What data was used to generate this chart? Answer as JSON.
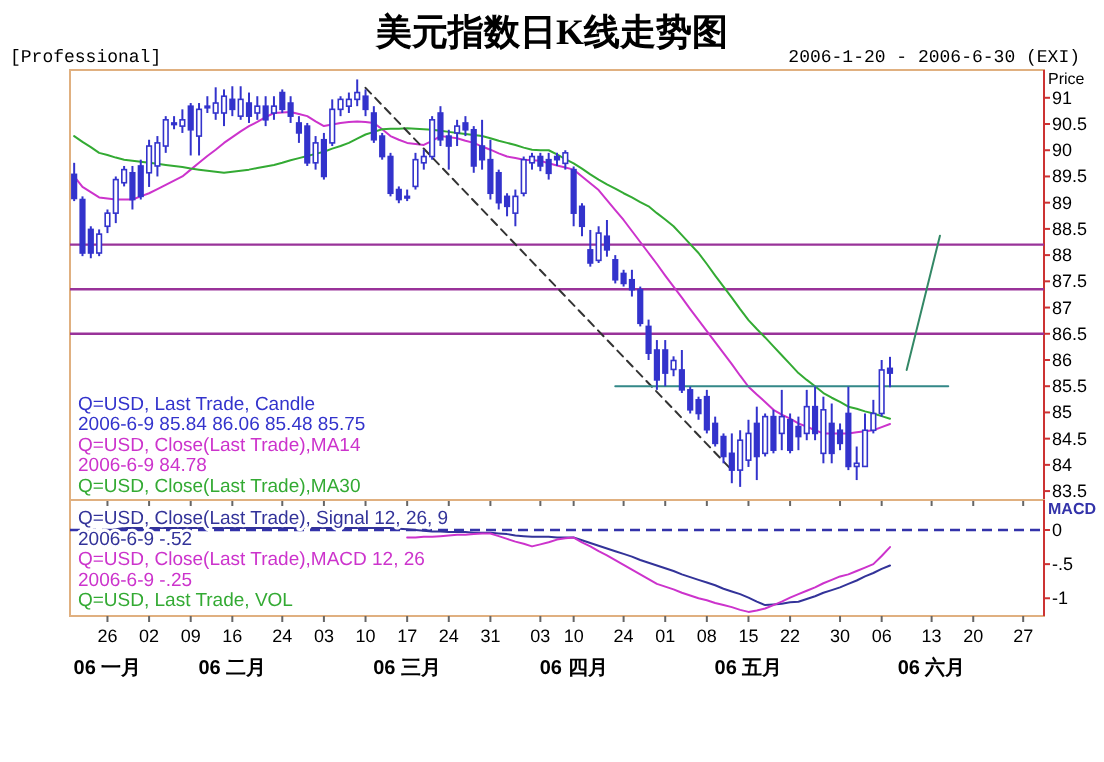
{
  "chart_data": [
    {
      "type": "candlestick",
      "title": "美元指数日K线走势图",
      "subtitle": "2006-1-20 - 2006-6-30 (EXI)",
      "annotations": [
        "[Professional]"
      ],
      "ylabel": "Price",
      "categories": [
        null,
        null,
        null,
        null,
        "26",
        null,
        null,
        null,
        null,
        "02",
        null,
        null,
        null,
        null,
        "09",
        null,
        null,
        null,
        null,
        "16",
        null,
        null,
        null,
        null,
        null,
        "24",
        null,
        null,
        null,
        null,
        "03",
        null,
        null,
        null,
        null,
        "10",
        null,
        null,
        null,
        null,
        "17",
        null,
        null,
        null,
        null,
        "24",
        null,
        null,
        null,
        null,
        "31",
        null,
        null,
        null,
        null,
        null,
        "03",
        null,
        null,
        null,
        "10",
        null,
        null,
        null,
        null,
        null,
        "24",
        null,
        null,
        null,
        null,
        "01",
        null,
        null,
        null,
        null,
        "08",
        null,
        null,
        null,
        null,
        "15",
        null,
        null,
        null,
        null,
        "22",
        null,
        null,
        null,
        null,
        null,
        "30",
        null,
        null,
        null,
        null,
        "06",
        null,
        null,
        null,
        null,
        null,
        "13",
        null,
        null,
        null,
        null,
        "20",
        null,
        null,
        null,
        null,
        null,
        "27",
        null,
        null
      ],
      "ylim": [
        83.33,
        91.53
      ],
      "yticks": [
        83.5,
        84,
        84.5,
        85,
        85.5,
        86,
        86.5,
        87,
        87.5,
        88,
        88.5,
        89,
        89.5,
        90,
        90.5,
        91
      ],
      "tick_labels": "y",
      "legend": "bottom left",
      "ref_lines": [
        {
          "axis": "y",
          "value": 88.2,
          "color": "#993399"
        },
        {
          "axis": "y",
          "value": 87.35,
          "color": "#993399"
        },
        {
          "axis": "y",
          "value": 86.5,
          "color": "#993399"
        }
      ],
      "series": [
        {
          "type": "line",
          "name": "Q=USD, Close(Last Trade),MA14\n2006-6-9 84.78",
          "color": "#cc33cc",
          "values": [
            89.5,
            89.3,
            89.2,
            89.1,
            89.08,
            89.06,
            89.06,
            89.06,
            89.12,
            89.18,
            89.26,
            89.34,
            89.42,
            89.5,
            89.63,
            89.76,
            89.89,
            90.01,
            90.14,
            90.25,
            90.36,
            90.46,
            90.54,
            90.63,
            90.71,
            90.72,
            90.73,
            90.69,
            90.65,
            90.55,
            90.46,
            90.49,
            90.52,
            90.54,
            90.55,
            90.54,
            90.52,
            90.4,
            90.27,
            90.2,
            90.14,
            90.12,
            90.1,
            90.18,
            90.27,
            90.25,
            90.23,
            90.18,
            90.14,
            90.07,
            90.01,
            89.94,
            89.88,
            89.85,
            89.82,
            89.81,
            89.8,
            89.75,
            89.71,
            89.67,
            89.63,
            89.5,
            89.37,
            89.24,
            89.05,
            88.86,
            88.67,
            88.46,
            88.25,
            88.04,
            87.83,
            87.61,
            87.4,
            87.19,
            86.97,
            86.76,
            86.55,
            86.34,
            86.13,
            85.92,
            85.7,
            85.49,
            85.34,
            85.2,
            85.05,
            84.96,
            84.88,
            84.79,
            84.73,
            84.66,
            84.6,
            84.6,
            84.6,
            84.6,
            84.62,
            84.64,
            84.66,
            84.72,
            84.78,
            null,
            null,
            null,
            null,
            null,
            null,
            null,
            null,
            null,
            null,
            null,
            null,
            null,
            null,
            null,
            null,
            null,
            null
          ]
        },
        {
          "type": "line",
          "name": "Q=USD, Close(Last Trade),MA30",
          "color": "#33aa33",
          "values": [
            90.27,
            90.16,
            90.06,
            89.95,
            89.91,
            89.86,
            89.82,
            89.8,
            89.78,
            89.76,
            89.74,
            89.72,
            89.7,
            89.68,
            89.65,
            89.63,
            89.61,
            89.59,
            89.57,
            89.59,
            89.61,
            89.63,
            89.66,
            89.69,
            89.72,
            89.76,
            89.81,
            89.85,
            89.89,
            89.93,
            89.97,
            90.03,
            90.08,
            90.14,
            90.22,
            90.3,
            90.35,
            90.4,
            90.41,
            90.41,
            90.42,
            90.41,
            90.4,
            90.39,
            90.37,
            90.35,
            90.33,
            90.31,
            90.29,
            90.27,
            90.23,
            90.18,
            90.14,
            90.1,
            90.05,
            90.01,
            90.0,
            90.0,
            89.92,
            89.83,
            89.75,
            89.65,
            89.54,
            89.44,
            89.35,
            89.27,
            89.18,
            89.1,
            89.01,
            88.93,
            88.8,
            88.68,
            88.55,
            88.38,
            88.21,
            88.04,
            87.83,
            87.61,
            87.4,
            87.19,
            86.97,
            86.76,
            86.59,
            86.43,
            86.26,
            86.09,
            85.92,
            85.75,
            85.62,
            85.5,
            85.37,
            85.28,
            85.2,
            85.11,
            85.07,
            85.02,
            84.98,
            84.93,
            84.88,
            null,
            null,
            null,
            null,
            null,
            null,
            null,
            null,
            null,
            null,
            null,
            null,
            null,
            null,
            null,
            null,
            null,
            null
          ]
        },
        {
          "type": "line",
          "color": "#333333",
          "line_style": "dashed",
          "values": [
            null,
            null,
            null,
            null,
            null,
            null,
            null,
            null,
            null,
            null,
            null,
            null,
            null,
            null,
            null,
            null,
            null,
            null,
            null,
            null,
            null,
            null,
            null,
            null,
            null,
            null,
            null,
            null,
            null,
            null,
            null,
            null,
            null,
            null,
            null,
            91.19,
            null,
            null,
            null,
            null,
            null,
            null,
            null,
            null,
            null,
            null,
            null,
            null,
            null,
            null,
            null,
            null,
            null,
            null,
            null,
            null,
            null,
            null,
            null,
            null,
            null,
            null,
            null,
            null,
            null,
            null,
            null,
            null,
            null,
            null,
            null,
            null,
            null,
            null,
            null,
            null,
            null,
            null,
            null,
            83.9,
            null,
            null,
            null,
            null,
            null,
            null,
            null,
            null,
            null,
            null,
            null,
            null,
            null,
            null,
            null,
            null,
            null,
            null,
            null,
            null,
            null,
            null,
            null,
            null,
            null,
            null,
            null,
            null,
            null,
            null,
            null,
            null,
            null,
            null,
            null,
            null,
            null
          ]
        },
        {
          "type": "line",
          "color": "#338888",
          "values": [
            null,
            null,
            null,
            null,
            null,
            null,
            null,
            null,
            null,
            null,
            null,
            null,
            null,
            null,
            null,
            null,
            null,
            null,
            null,
            null,
            null,
            null,
            null,
            null,
            null,
            null,
            null,
            null,
            null,
            null,
            null,
            null,
            null,
            null,
            null,
            null,
            null,
            null,
            null,
            null,
            null,
            null,
            null,
            null,
            null,
            null,
            null,
            null,
            null,
            null,
            null,
            null,
            null,
            null,
            null,
            null,
            null,
            null,
            null,
            null,
            null,
            null,
            null,
            null,
            null,
            85.5,
            null,
            null,
            null,
            null,
            null,
            null,
            null,
            null,
            null,
            null,
            null,
            null,
            null,
            null,
            null,
            null,
            null,
            null,
            null,
            null,
            null,
            null,
            null,
            null,
            null,
            null,
            null,
            null,
            null,
            null,
            null,
            null,
            null,
            null,
            null,
            null,
            null,
            null,
            null,
            85.5,
            null,
            null,
            null,
            null,
            null,
            null,
            null,
            null,
            null,
            null,
            null
          ]
        },
        {
          "type": "line",
          "color": "#338866",
          "values": [
            null,
            null,
            null,
            null,
            null,
            null,
            null,
            null,
            null,
            null,
            null,
            null,
            null,
            null,
            null,
            null,
            null,
            null,
            null,
            null,
            null,
            null,
            null,
            null,
            null,
            null,
            null,
            null,
            null,
            null,
            null,
            null,
            null,
            null,
            null,
            null,
            null,
            null,
            null,
            null,
            null,
            null,
            null,
            null,
            null,
            null,
            null,
            null,
            null,
            null,
            null,
            null,
            null,
            null,
            null,
            null,
            null,
            null,
            null,
            null,
            null,
            null,
            null,
            null,
            null,
            null,
            null,
            null,
            null,
            null,
            null,
            null,
            null,
            null,
            null,
            null,
            null,
            null,
            null,
            null,
            null,
            null,
            null,
            null,
            null,
            null,
            null,
            null,
            null,
            null,
            null,
            null,
            null,
            null,
            null,
            null,
            null,
            null,
            null,
            null,
            85.81,
            null,
            null,
            null,
            88.37,
            null,
            null,
            null,
            null,
            null,
            null,
            null,
            null,
            null,
            null,
            null,
            null
          ]
        },
        {
          "type": "candlestick",
          "name": "Q=USD, Last Trade, Candle\n2006-6-9 85.84 86.06 85.48 85.75",
          "color": "#3333cc",
          "ohlc": [
            [
              89.54,
              89.76,
              89.03,
              89.08
            ],
            [
              89.06,
              89.12,
              87.98,
              88.04
            ],
            [
              88.49,
              88.55,
              87.94,
              88.04
            ],
            [
              88.04,
              88.49,
              87.98,
              88.4
            ],
            [
              88.55,
              88.87,
              88.42,
              88.8
            ],
            [
              88.8,
              89.5,
              88.61,
              89.44
            ],
            [
              89.38,
              89.7,
              89.31,
              89.63
            ],
            [
              89.57,
              89.7,
              88.87,
              89.06
            ],
            [
              89.7,
              89.82,
              89.06,
              89.12
            ],
            [
              89.57,
              90.2,
              89.3,
              90.08
            ],
            [
              89.7,
              90.27,
              89.5,
              90.14
            ],
            [
              90.08,
              90.65,
              89.95,
              90.58
            ],
            [
              90.52,
              90.65,
              90.4,
              90.5
            ],
            [
              90.46,
              90.78,
              90.33,
              90.58
            ],
            [
              90.84,
              90.9,
              89.9,
              90.39
            ],
            [
              90.27,
              90.9,
              89.9,
              90.78
            ],
            [
              90.84,
              91.03,
              90.71,
              90.82
            ],
            [
              90.71,
              91.2,
              90.58,
              90.9
            ],
            [
              90.71,
              91.16,
              90.46,
              91.03
            ],
            [
              90.97,
              91.22,
              90.65,
              90.78
            ],
            [
              90.65,
              91.22,
              90.58,
              90.97
            ],
            [
              90.9,
              91.1,
              90.52,
              90.65
            ],
            [
              90.71,
              91.03,
              90.58,
              90.84
            ],
            [
              90.84,
              91.03,
              90.46,
              90.58
            ],
            [
              90.71,
              91.03,
              90.58,
              90.84
            ],
            [
              91.1,
              91.16,
              90.71,
              90.78
            ],
            [
              90.9,
              91.03,
              90.52,
              90.65
            ],
            [
              90.52,
              90.65,
              90.14,
              90.33
            ],
            [
              90.46,
              90.52,
              89.7,
              89.76
            ],
            [
              89.76,
              90.27,
              89.63,
              90.14
            ],
            [
              90.2,
              90.33,
              89.44,
              89.5
            ],
            [
              90.14,
              90.97,
              90.08,
              90.78
            ],
            [
              90.78,
              91.03,
              90.65,
              90.97
            ],
            [
              90.84,
              91.1,
              90.71,
              90.97
            ],
            [
              90.97,
              91.35,
              90.84,
              91.1
            ],
            [
              91.03,
              91.16,
              90.65,
              90.78
            ],
            [
              90.71,
              90.84,
              90.14,
              90.2
            ],
            [
              90.27,
              90.33,
              89.82,
              89.88
            ],
            [
              89.88,
              89.95,
              89.12,
              89.18
            ],
            [
              89.25,
              89.31,
              88.99,
              89.06
            ],
            [
              89.1,
              89.25,
              89.03,
              89.12
            ],
            [
              89.31,
              89.95,
              89.25,
              89.82
            ],
            [
              89.76,
              90.01,
              89.63,
              89.88
            ],
            [
              89.88,
              90.65,
              89.82,
              90.58
            ],
            [
              90.71,
              90.84,
              90.08,
              90.2
            ],
            [
              90.27,
              90.39,
              89.63,
              90.08
            ],
            [
              90.33,
              90.58,
              90.08,
              90.46
            ],
            [
              90.52,
              90.65,
              90.27,
              90.39
            ],
            [
              90.39,
              90.46,
              89.57,
              89.7
            ],
            [
              90.08,
              90.58,
              89.63,
              89.82
            ],
            [
              89.82,
              90.2,
              89.06,
              89.18
            ],
            [
              89.57,
              89.63,
              88.87,
              89.0
            ],
            [
              89.12,
              89.18,
              88.74,
              88.93
            ],
            [
              88.8,
              89.25,
              88.55,
              89.12
            ],
            [
              89.18,
              89.88,
              89.12,
              89.82
            ],
            [
              89.76,
              89.95,
              89.63,
              89.88
            ],
            [
              89.88,
              89.95,
              89.6,
              89.7
            ],
            [
              89.82,
              89.95,
              89.44,
              89.56
            ],
            [
              89.88,
              89.95,
              89.7,
              89.82
            ],
            [
              89.75,
              90.0,
              89.63,
              89.95
            ],
            [
              89.63,
              89.69,
              88.55,
              88.8
            ],
            [
              88.93,
              88.99,
              88.36,
              88.55
            ],
            [
              88.1,
              88.48,
              87.78,
              87.85
            ],
            [
              87.9,
              88.55,
              87.85,
              88.42
            ],
            [
              88.36,
              88.67,
              87.97,
              88.1
            ],
            [
              87.91,
              88.0,
              87.46,
              87.53
            ],
            [
              87.65,
              87.72,
              87.4,
              87.46
            ],
            [
              87.53,
              87.72,
              87.21,
              87.34
            ],
            [
              87.34,
              87.4,
              86.64,
              86.7
            ],
            [
              86.64,
              86.77,
              86.0,
              86.13
            ],
            [
              86.19,
              86.38,
              85.43,
              85.62
            ],
            [
              86.19,
              86.38,
              85.5,
              85.75
            ],
            [
              85.82,
              86.07,
              85.69,
              85.99
            ],
            [
              85.81,
              86.19,
              85.37,
              85.43
            ],
            [
              85.43,
              85.49,
              84.98,
              85.05
            ],
            [
              85.24,
              85.3,
              84.86,
              84.98
            ],
            [
              85.3,
              85.43,
              84.6,
              84.67
            ],
            [
              84.79,
              84.92,
              84.35,
              84.41
            ],
            [
              84.54,
              84.6,
              84.03,
              84.16
            ],
            [
              84.22,
              84.6,
              83.65,
              83.9
            ],
            [
              83.9,
              84.66,
              83.58,
              84.47
            ],
            [
              84.09,
              84.86,
              83.96,
              84.6
            ],
            [
              84.79,
              85.11,
              83.71,
              84.16
            ],
            [
              84.22,
              84.98,
              84.16,
              84.92
            ],
            [
              84.92,
              85.05,
              84.22,
              84.28
            ],
            [
              84.6,
              85.43,
              84.28,
              84.92
            ],
            [
              84.86,
              84.98,
              84.22,
              84.28
            ],
            [
              84.73,
              84.92,
              84.28,
              84.54
            ],
            [
              84.6,
              85.43,
              84.47,
              85.11
            ],
            [
              85.11,
              85.49,
              84.47,
              84.6
            ],
            [
              84.22,
              85.3,
              84.03,
              85.05
            ],
            [
              84.79,
              85.17,
              84.03,
              84.22
            ],
            [
              84.66,
              84.79,
              84.28,
              84.41
            ],
            [
              84.98,
              85.49,
              83.9,
              83.97
            ],
            [
              83.97,
              84.35,
              83.71,
              84.03
            ],
            [
              83.97,
              84.98,
              83.97,
              84.66
            ],
            [
              84.66,
              85.24,
              84.6,
              84.98
            ],
            [
              84.98,
              86.0,
              84.92,
              85.81
            ],
            [
              85.84,
              86.06,
              85.48,
              85.75
            ],
            null,
            null,
            null,
            null,
            null,
            null,
            null,
            null,
            null,
            null,
            null,
            null,
            null,
            null,
            null,
            null,
            null,
            null
          ]
        }
      ]
    },
    {
      "type": "line",
      "ylabel": "MACD",
      "categories": [
        null,
        null,
        null,
        null,
        "26\n06 一月",
        null,
        null,
        null,
        null,
        "02",
        null,
        null,
        null,
        null,
        "09",
        null,
        null,
        null,
        null,
        "16\n06 二月",
        null,
        null,
        null,
        null,
        null,
        "24",
        null,
        null,
        null,
        null,
        "03",
        null,
        null,
        null,
        null,
        "10",
        null,
        null,
        null,
        null,
        "17\n06 三月",
        null,
        null,
        null,
        null,
        "24",
        null,
        null,
        null,
        null,
        "31",
        null,
        null,
        null,
        null,
        null,
        "03",
        null,
        null,
        null,
        "10\n06 四月",
        null,
        null,
        null,
        null,
        null,
        "24",
        null,
        null,
        null,
        null,
        "01",
        null,
        null,
        null,
        null,
        "08",
        null,
        null,
        null,
        null,
        "15\n06 五月",
        null,
        null,
        null,
        null,
        "22",
        null,
        null,
        null,
        null,
        null,
        "30",
        null,
        null,
        null,
        null,
        "06",
        null,
        null,
        null,
        null,
        null,
        "13\n06 六月",
        null,
        null,
        null,
        null,
        "20",
        null,
        null,
        null,
        null,
        null,
        "27",
        null,
        null
      ],
      "ylim": [
        -1.26,
        0.44
      ],
      "annotations": [
        "Q=USD, Last Trade, VOL"
      ],
      "yticks": [
        0,
        {
          "value": -0.5,
          "label": "-.5"
        },
        -1
      ],
      "legend": "top left",
      "ref_lines": [
        {
          "axis": "y",
          "value": 0,
          "color": "#3333aa",
          "line_style": "dashed"
        }
      ],
      "series": [
        {
          "name": "Q=USD, Close(Last Trade), Signal 12, 26, 9\n2006-6-9 -.52",
          "color": "#333399",
          "values": [
            null,
            null,
            -0.05,
            -0.03,
            -0.01,
            0.01,
            0.03,
            0.03,
            0.03,
            0.03,
            0.03,
            0.03,
            0.03,
            0.03,
            0.03,
            0.03,
            0.03,
            0.03,
            0.03,
            0.03,
            0.03,
            0.03,
            0.03,
            0.03,
            0.03,
            0.03,
            0.03,
            0.03,
            0.03,
            0.03,
            0.03,
            0.03,
            0.03,
            0.03,
            0.03,
            0.03,
            0.03,
            0.03,
            0.03,
            0.02,
            0.01,
            0,
            -0.01,
            -0.02,
            -0.02,
            -0.03,
            -0.03,
            -0.03,
            -0.04,
            -0.04,
            -0.04,
            -0.05,
            -0.06,
            -0.08,
            -0.09,
            -0.1,
            -0.1,
            -0.1,
            -0.11,
            -0.11,
            -0.11,
            -0.15,
            -0.19,
            -0.23,
            -0.27,
            -0.31,
            -0.35,
            -0.39,
            -0.44,
            -0.48,
            -0.52,
            -0.56,
            -0.6,
            -0.65,
            -0.69,
            -0.73,
            -0.77,
            -0.81,
            -0.86,
            -0.9,
            -0.94,
            -0.99,
            -1.05,
            -1.1,
            -1.09,
            -1.08,
            -1.06,
            -1.05,
            -1.01,
            -0.97,
            -0.92,
            -0.88,
            -0.84,
            -0.79,
            -0.74,
            -0.68,
            -0.63,
            -0.57,
            -0.52,
            null,
            null,
            null,
            null,
            null,
            null,
            null,
            null,
            null,
            null,
            null,
            null,
            null,
            null,
            null,
            null,
            null,
            null
          ]
        },
        {
          "name": "Q=USD, Close(Last Trade),MACD 12, 26\n2006-6-9 -.25",
          "color": "#cc33cc",
          "values": [
            null,
            null,
            null,
            null,
            null,
            null,
            null,
            null,
            null,
            null,
            null,
            null,
            null,
            null,
            null,
            null,
            null,
            null,
            null,
            null,
            null,
            null,
            null,
            null,
            null,
            null,
            null,
            null,
            null,
            null,
            null,
            null,
            null,
            null,
            null,
            null,
            null,
            null,
            null,
            null,
            -0.11,
            -0.11,
            -0.1,
            -0.1,
            -0.09,
            -0.08,
            -0.07,
            -0.07,
            -0.06,
            -0.05,
            -0.05,
            -0.09,
            -0.13,
            -0.17,
            -0.2,
            -0.24,
            -0.21,
            -0.18,
            -0.14,
            -0.12,
            -0.11,
            -0.18,
            -0.24,
            -0.31,
            -0.37,
            -0.44,
            -0.51,
            -0.58,
            -0.65,
            -0.72,
            -0.79,
            -0.83,
            -0.87,
            -0.92,
            -0.96,
            -1.0,
            -1.03,
            -1.07,
            -1.1,
            -1.13,
            -1.17,
            -1.2,
            -1.18,
            -1.15,
            -1.1,
            -1.05,
            -0.99,
            -0.94,
            -0.89,
            -0.84,
            -0.78,
            -0.73,
            -0.68,
            -0.65,
            -0.6,
            -0.55,
            -0.5,
            -0.38,
            -0.25,
            null,
            null,
            null,
            null,
            null,
            null,
            null,
            null,
            null,
            null,
            null,
            null,
            null,
            null,
            null,
            null,
            null,
            null
          ]
        }
      ]
    }
  ]
}
